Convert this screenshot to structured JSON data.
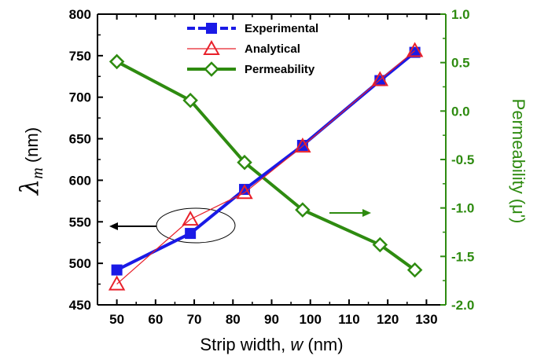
{
  "chart_data": {
    "type": "line",
    "xlabel_prefix": "Strip width, ",
    "xlabel_var": "w",
    "xlabel_unit": " (nm)",
    "ylabel_symbol": "λ",
    "ylabel_sub": "m",
    "ylabel_unit": " (nm)",
    "y2label": "Permeability (μ')",
    "xlim": [
      45,
      135
    ],
    "ylim": [
      450,
      800
    ],
    "y2lim": [
      -2.0,
      1.0
    ],
    "x_ticks": [
      "50",
      "60",
      "70",
      "80",
      "90",
      "100",
      "110",
      "120",
      "130"
    ],
    "y_ticks": [
      "450",
      "500",
      "550",
      "600",
      "650",
      "700",
      "750",
      "800"
    ],
    "y2_ticks": [
      "-2.0",
      "-1.5",
      "-1.0",
      "-0.5",
      "0.0",
      "0.5",
      "1.0"
    ],
    "legend_position": "top-center",
    "series": [
      {
        "name": "Experimental",
        "axis": "left",
        "color": "#1a1ae6",
        "marker": "filled-square",
        "x": [
          50,
          69,
          83,
          98,
          118,
          127
        ],
        "y": [
          492,
          536,
          589,
          642,
          720,
          754
        ]
      },
      {
        "name": "Analytical",
        "axis": "left",
        "color": "#e8202a",
        "marker": "open-triangle",
        "x": [
          50,
          69,
          83,
          98,
          118,
          127
        ],
        "y": [
          475,
          553,
          585,
          641,
          721,
          756
        ]
      },
      {
        "name": "Permeability",
        "axis": "right",
        "color": "#2e8b10",
        "marker": "open-diamond",
        "x": [
          50,
          69,
          83,
          98,
          118,
          127
        ],
        "y": [
          0.51,
          0.11,
          -0.53,
          -1.02,
          -1.38,
          -1.64
        ]
      }
    ]
  }
}
